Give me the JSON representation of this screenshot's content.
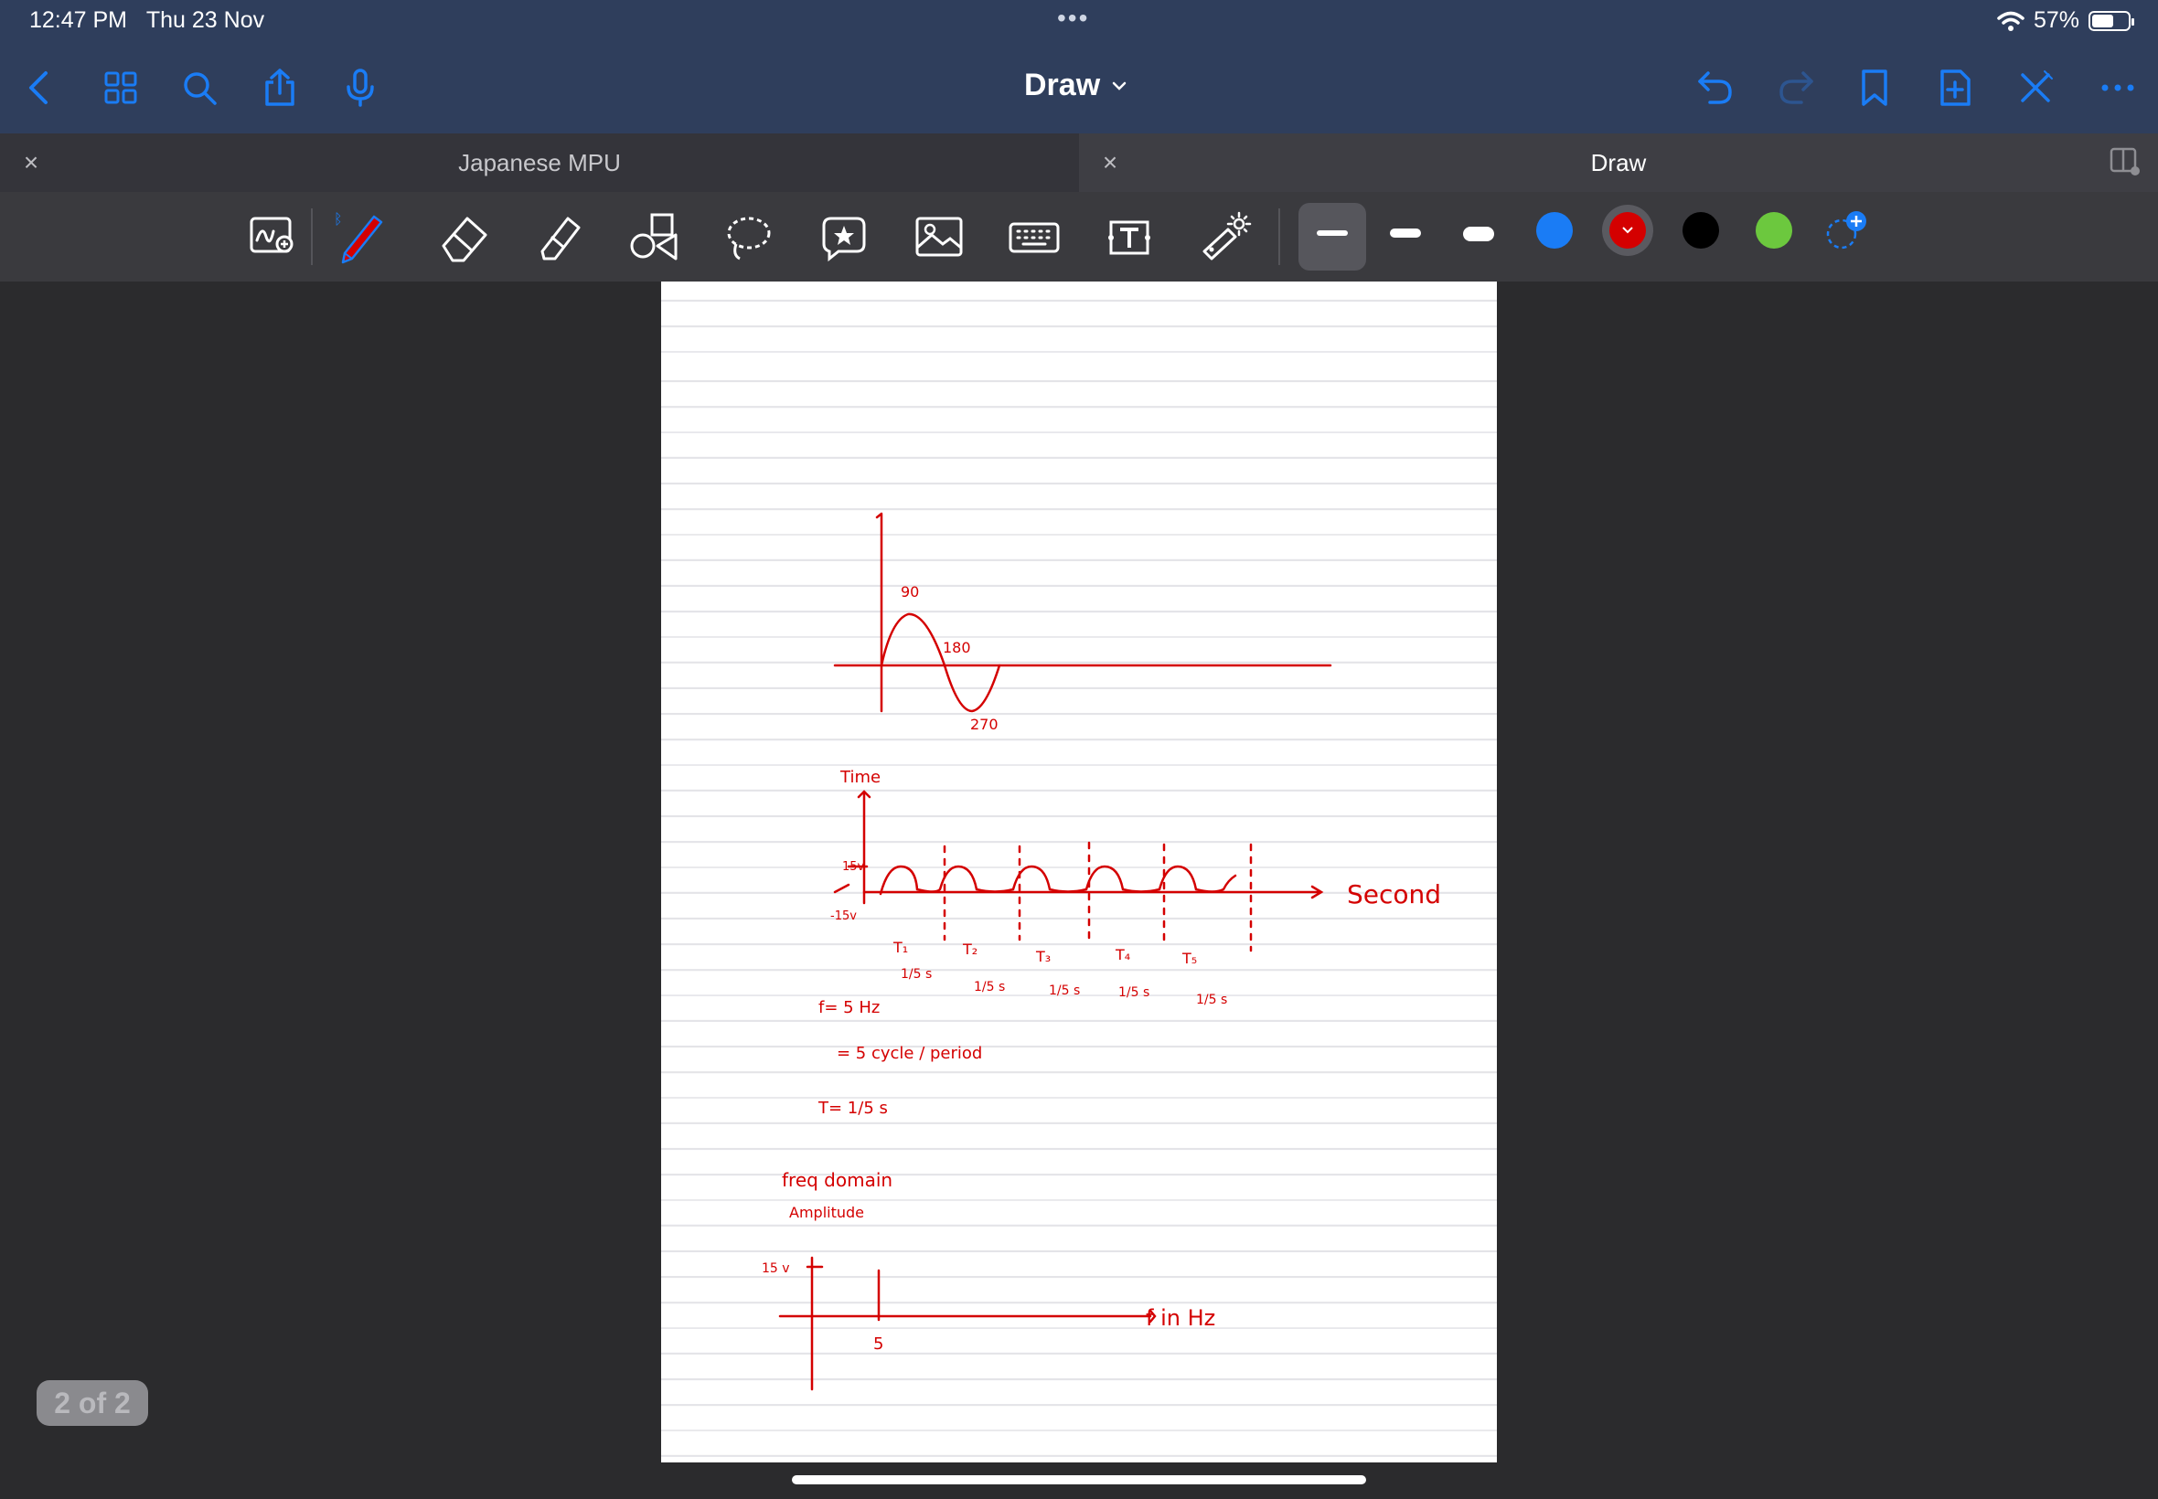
{
  "status": {
    "time": "12:47 PM",
    "date": "Thu 23 Nov",
    "battery": "57%",
    "battery_level": 0.57
  },
  "nav": {
    "title": "Draw",
    "icons": [
      "back-chevron-icon",
      "grid-icon",
      "search-icon",
      "share-icon",
      "microphone-icon",
      "undo-icon",
      "redo-icon",
      "bookmark-icon",
      "add-page-icon",
      "close-pen-icon",
      "more-icon"
    ]
  },
  "tabs": [
    {
      "label": "Japanese MPU"
    },
    {
      "label": "Draw"
    }
  ],
  "toolbar": {
    "tools": [
      "handwriting-zoom",
      "pen",
      "eraser",
      "highlighter",
      "shapes",
      "lasso",
      "sticker",
      "image",
      "keyboard",
      "text",
      "laser-pointer"
    ],
    "colors": [
      "#1a7cf5",
      "#d40000",
      "#000000",
      "#6cc83e"
    ],
    "selected_color": "#d40000"
  },
  "notes": {
    "sine_labels": [
      "90",
      "180",
      "270"
    ],
    "time_label": "Time",
    "amp_pos": "15v",
    "amp_neg": "-15v",
    "second_label": "Second",
    "periods": [
      "T₁",
      "T₂",
      "T₃",
      "T₄",
      "T₅"
    ],
    "period_value": "1/5 s",
    "f_eq": "f= 5 Hz",
    "cycle_eq": "= 5 cycle / period",
    "t_eq": "T= 1/5 s",
    "freq_domain": "freq domain",
    "amplitude": "Amplitude",
    "amp_15": "15 v",
    "x_5": "5",
    "f_in_hz": "f in Hz"
  },
  "page_indicator": "2 of 2"
}
